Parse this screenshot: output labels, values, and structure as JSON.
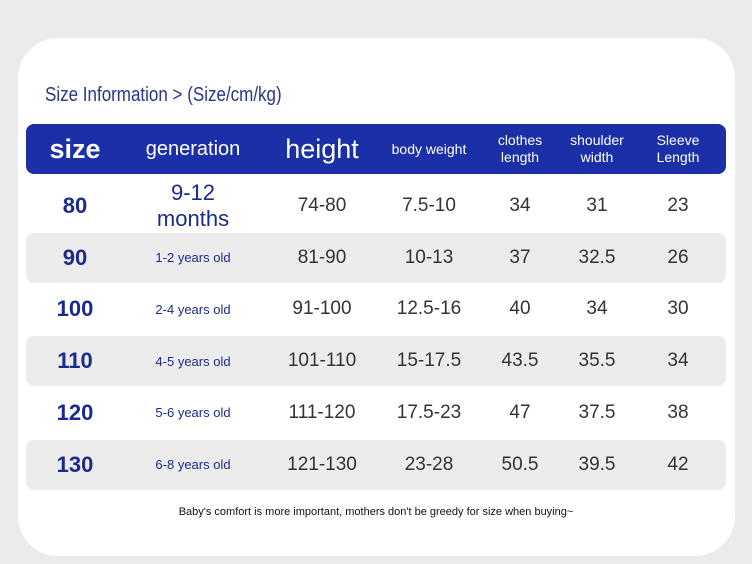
{
  "title": "Size Information > (Size/cm/kg)",
  "table": {
    "header": [
      "size",
      "generation",
      "height",
      "body weight",
      "clothes length",
      "shoulder width",
      "Sleeve Length"
    ],
    "rows": [
      [
        "80",
        "9-12 months",
        "74-80",
        "7.5-10",
        "34",
        "31",
        "23"
      ],
      [
        "90",
        "1-2 years old",
        "81-90",
        "10-13",
        "37",
        "32.5",
        "26"
      ],
      [
        "100",
        "2-4 years old",
        "91-100",
        "12.5-16",
        "40",
        "34",
        "30"
      ],
      [
        "110",
        "4-5 years old",
        "101-110",
        "15-17.5",
        "43.5",
        "35.5",
        "34"
      ],
      [
        "120",
        "5-6 years old",
        "111-120",
        "17.5-23",
        "47",
        "37.5",
        "38"
      ],
      [
        "130",
        "6-8 years old",
        "121-130",
        "23-28",
        "50.5",
        "39.5",
        "42"
      ]
    ]
  },
  "note": "Baby's comfort is more important, mothers don't be greedy for size when buying~"
}
